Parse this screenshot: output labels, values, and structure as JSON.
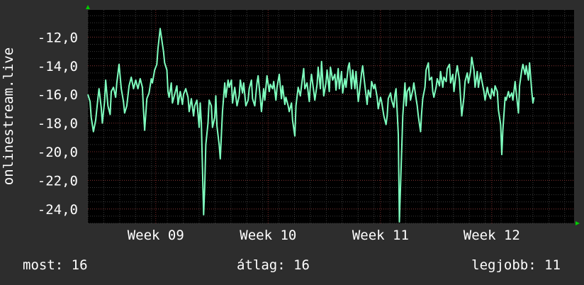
{
  "chart_data": {
    "type": "line",
    "ylabel": "onlinestream.live",
    "x_ticks": [
      "Week 09",
      "Week 10",
      "Week 11",
      "Week 12"
    ],
    "xlim": [
      0,
      4.37
    ],
    "x_tick_positions": [
      0.61,
      1.62,
      2.63,
      3.63
    ],
    "ylim": [
      -25.0,
      -10.1
    ],
    "y_ticks": [
      -12.0,
      -14.0,
      -16.0,
      -18.0,
      -20.0,
      -22.0,
      -24.0
    ],
    "y_tick_labels": [
      "-12,0",
      "-14,0",
      "-16,0",
      "-18,0",
      "-20,0",
      "-22,0",
      "-24,0"
    ],
    "grid": true,
    "series": [
      {
        "color": "#7fffbf",
        "points": [
          [
            0.0,
            -16.0
          ],
          [
            0.02,
            -16.5
          ],
          [
            0.03,
            -17.6
          ],
          [
            0.05,
            -18.6
          ],
          [
            0.07,
            -17.8
          ],
          [
            0.09,
            -16.3
          ],
          [
            0.1,
            -15.6
          ],
          [
            0.12,
            -16.9
          ],
          [
            0.13,
            -18.0
          ],
          [
            0.15,
            -16.5
          ],
          [
            0.16,
            -15.0
          ],
          [
            0.18,
            -16.8
          ],
          [
            0.2,
            -17.4
          ],
          [
            0.21,
            -15.8
          ],
          [
            0.23,
            -15.5
          ],
          [
            0.25,
            -16.2
          ],
          [
            0.26,
            -15.2
          ],
          [
            0.28,
            -13.9
          ],
          [
            0.3,
            -15.6
          ],
          [
            0.32,
            -16.5
          ],
          [
            0.33,
            -17.3
          ],
          [
            0.35,
            -16.8
          ],
          [
            0.37,
            -15.4
          ],
          [
            0.39,
            -14.8
          ],
          [
            0.41,
            -15.6
          ],
          [
            0.43,
            -15.0
          ],
          [
            0.45,
            -15.6
          ],
          [
            0.47,
            -14.9
          ],
          [
            0.49,
            -15.5
          ],
          [
            0.5,
            -17.1
          ],
          [
            0.51,
            -18.5
          ],
          [
            0.53,
            -16.3
          ],
          [
            0.55,
            -15.9
          ],
          [
            0.57,
            -14.9
          ],
          [
            0.58,
            -15.2
          ],
          [
            0.6,
            -14.3
          ],
          [
            0.62,
            -13.9
          ],
          [
            0.63,
            -12.8
          ],
          [
            0.65,
            -11.4
          ],
          [
            0.67,
            -12.5
          ],
          [
            0.68,
            -13.0
          ],
          [
            0.69,
            -13.8
          ],
          [
            0.71,
            -14.3
          ],
          [
            0.72,
            -15.8
          ],
          [
            0.73,
            -16.2
          ],
          [
            0.75,
            -15.2
          ],
          [
            0.76,
            -16.6
          ],
          [
            0.78,
            -16.0
          ],
          [
            0.8,
            -15.4
          ],
          [
            0.81,
            -16.7
          ],
          [
            0.83,
            -15.8
          ],
          [
            0.85,
            -16.7
          ],
          [
            0.86,
            -16.0
          ],
          [
            0.88,
            -15.6
          ],
          [
            0.9,
            -16.2
          ],
          [
            0.91,
            -17.2
          ],
          [
            0.93,
            -16.3
          ],
          [
            0.95,
            -17.5
          ],
          [
            0.96,
            -16.8
          ],
          [
            0.98,
            -16.4
          ],
          [
            1.0,
            -18.3
          ],
          [
            1.01,
            -16.6
          ],
          [
            1.02,
            -18.0
          ],
          [
            1.04,
            -24.4
          ],
          [
            1.05,
            -22.5
          ],
          [
            1.06,
            -19.5
          ],
          [
            1.08,
            -18.0
          ],
          [
            1.09,
            -16.4
          ],
          [
            1.11,
            -16.8
          ],
          [
            1.12,
            -18.3
          ],
          [
            1.14,
            -17.6
          ],
          [
            1.15,
            -16.1
          ],
          [
            1.16,
            -18.2
          ],
          [
            1.18,
            -19.5
          ],
          [
            1.19,
            -20.5
          ],
          [
            1.21,
            -17.2
          ],
          [
            1.23,
            -15.2
          ],
          [
            1.24,
            -16.2
          ],
          [
            1.26,
            -15.0
          ],
          [
            1.27,
            -15.5
          ],
          [
            1.29,
            -15.0
          ],
          [
            1.3,
            -16.6
          ],
          [
            1.32,
            -15.5
          ],
          [
            1.34,
            -16.8
          ],
          [
            1.36,
            -16.1
          ],
          [
            1.37,
            -15.0
          ],
          [
            1.39,
            -15.9
          ],
          [
            1.4,
            -15.2
          ],
          [
            1.42,
            -16.8
          ],
          [
            1.44,
            -16.4
          ],
          [
            1.45,
            -15.6
          ],
          [
            1.47,
            -15.0
          ],
          [
            1.48,
            -16.3
          ],
          [
            1.5,
            -16.8
          ],
          [
            1.52,
            -15.2
          ],
          [
            1.53,
            -14.7
          ],
          [
            1.55,
            -16.3
          ],
          [
            1.56,
            -17.2
          ],
          [
            1.58,
            -15.6
          ],
          [
            1.59,
            -16.4
          ],
          [
            1.61,
            -14.7
          ],
          [
            1.63,
            -15.8
          ],
          [
            1.64,
            -15.3
          ],
          [
            1.66,
            -15.6
          ],
          [
            1.67,
            -15.1
          ],
          [
            1.69,
            -16.4
          ],
          [
            1.7,
            -15.5
          ],
          [
            1.72,
            -14.6
          ],
          [
            1.74,
            -16.3
          ],
          [
            1.75,
            -15.4
          ],
          [
            1.77,
            -16.7
          ],
          [
            1.78,
            -16.2
          ],
          [
            1.8,
            -16.8
          ],
          [
            1.81,
            -17.2
          ],
          [
            1.83,
            -16.6
          ],
          [
            1.84,
            -17.8
          ],
          [
            1.86,
            -18.9
          ],
          [
            1.87,
            -16.8
          ],
          [
            1.89,
            -15.5
          ],
          [
            1.91,
            -16.1
          ],
          [
            1.92,
            -15.4
          ],
          [
            1.94,
            -14.2
          ],
          [
            1.95,
            -15.6
          ],
          [
            1.97,
            -15.2
          ],
          [
            1.99,
            -16.5
          ],
          [
            2.0,
            -15.3
          ],
          [
            2.01,
            -14.6
          ],
          [
            2.03,
            -15.8
          ],
          [
            2.04,
            -16.4
          ],
          [
            2.06,
            -15.3
          ],
          [
            2.07,
            -14.1
          ],
          [
            2.09,
            -15.6
          ],
          [
            2.1,
            -13.7
          ],
          [
            2.12,
            -16.1
          ],
          [
            2.14,
            -15.2
          ],
          [
            2.15,
            -14.3
          ],
          [
            2.17,
            -15.8
          ],
          [
            2.18,
            -14.1
          ],
          [
            2.2,
            -15.0
          ],
          [
            2.22,
            -14.6
          ],
          [
            2.23,
            -15.7
          ],
          [
            2.25,
            -14.2
          ],
          [
            2.26,
            -15.6
          ],
          [
            2.28,
            -14.4
          ],
          [
            2.29,
            -15.9
          ],
          [
            2.31,
            -14.9
          ],
          [
            2.32,
            -15.5
          ],
          [
            2.34,
            -14.1
          ],
          [
            2.35,
            -13.8
          ],
          [
            2.37,
            -15.6
          ],
          [
            2.38,
            -14.3
          ],
          [
            2.4,
            -15.6
          ],
          [
            2.41,
            -14.4
          ],
          [
            2.43,
            -16.5
          ],
          [
            2.44,
            -15.9
          ],
          [
            2.46,
            -14.5
          ],
          [
            2.47,
            -14.0
          ],
          [
            2.49,
            -15.4
          ],
          [
            2.51,
            -16.7
          ],
          [
            2.52,
            -15.7
          ],
          [
            2.54,
            -16.2
          ],
          [
            2.55,
            -15.1
          ],
          [
            2.57,
            -15.6
          ],
          [
            2.58,
            -15.3
          ],
          [
            2.6,
            -16.2
          ],
          [
            2.61,
            -17.0
          ],
          [
            2.63,
            -16.2
          ],
          [
            2.64,
            -16.5
          ],
          [
            2.66,
            -17.5
          ],
          [
            2.68,
            -18.1
          ],
          [
            2.69,
            -17.5
          ],
          [
            2.7,
            -16.3
          ],
          [
            2.72,
            -15.9
          ],
          [
            2.73,
            -16.4
          ],
          [
            2.75,
            -16.9
          ],
          [
            2.76,
            -16.0
          ],
          [
            2.77,
            -15.6
          ],
          [
            2.79,
            -18.8
          ],
          [
            2.8,
            -24.9
          ],
          [
            2.82,
            -20.0
          ],
          [
            2.83,
            -17.5
          ],
          [
            2.85,
            -15.2
          ],
          [
            2.86,
            -16.8
          ],
          [
            2.87,
            -15.8
          ],
          [
            2.89,
            -15.5
          ],
          [
            2.9,
            -16.4
          ],
          [
            2.92,
            -15.7
          ],
          [
            2.93,
            -15.2
          ],
          [
            2.95,
            -16.3
          ],
          [
            2.96,
            -16.8
          ],
          [
            2.97,
            -17.5
          ],
          [
            2.99,
            -18.6
          ],
          [
            3.0,
            -17.3
          ],
          [
            3.01,
            -16.3
          ],
          [
            3.03,
            -15.5
          ],
          [
            3.04,
            -14.3
          ],
          [
            3.06,
            -13.8
          ],
          [
            3.07,
            -15.0
          ],
          [
            3.09,
            -14.8
          ],
          [
            3.1,
            -15.8
          ],
          [
            3.11,
            -16.2
          ],
          [
            3.13,
            -15.5
          ],
          [
            3.14,
            -14.9
          ],
          [
            3.16,
            -15.4
          ],
          [
            3.17,
            -14.4
          ],
          [
            3.19,
            -15.5
          ],
          [
            3.2,
            -14.8
          ],
          [
            3.22,
            -15.1
          ],
          [
            3.23,
            -14.2
          ],
          [
            3.25,
            -13.9
          ],
          [
            3.26,
            -15.2
          ],
          [
            3.28,
            -14.6
          ],
          [
            3.29,
            -15.8
          ],
          [
            3.31,
            -14.5
          ],
          [
            3.32,
            -14.0
          ],
          [
            3.34,
            -15.0
          ],
          [
            3.35,
            -16.3
          ],
          [
            3.36,
            -17.5
          ],
          [
            3.38,
            -16.2
          ],
          [
            3.39,
            -15.1
          ],
          [
            3.41,
            -14.5
          ],
          [
            3.42,
            -15.2
          ],
          [
            3.44,
            -14.4
          ],
          [
            3.45,
            -13.4
          ],
          [
            3.47,
            -14.3
          ],
          [
            3.48,
            -15.5
          ],
          [
            3.5,
            -14.4
          ],
          [
            3.51,
            -15.5
          ],
          [
            3.53,
            -14.5
          ],
          [
            3.54,
            -15.0
          ],
          [
            3.56,
            -15.8
          ],
          [
            3.57,
            -16.4
          ],
          [
            3.59,
            -15.5
          ],
          [
            3.6,
            -15.9
          ],
          [
            3.62,
            -16.3
          ],
          [
            3.63,
            -15.6
          ],
          [
            3.65,
            -16.1
          ],
          [
            3.66,
            -15.4
          ],
          [
            3.68,
            -15.8
          ],
          [
            3.69,
            -17.1
          ],
          [
            3.71,
            -18.1
          ],
          [
            3.72,
            -20.2
          ],
          [
            3.73,
            -18.5
          ],
          [
            3.75,
            -16.2
          ],
          [
            3.76,
            -16.4
          ],
          [
            3.78,
            -15.8
          ],
          [
            3.79,
            -16.2
          ],
          [
            3.81,
            -15.9
          ],
          [
            3.82,
            -16.4
          ],
          [
            3.84,
            -15.1
          ],
          [
            3.85,
            -15.9
          ],
          [
            3.87,
            -17.3
          ],
          [
            3.88,
            -15.4
          ],
          [
            3.9,
            -14.3
          ],
          [
            3.91,
            -13.9
          ],
          [
            3.93,
            -14.6
          ],
          [
            3.94,
            -14.0
          ],
          [
            3.96,
            -15.0
          ],
          [
            3.97,
            -13.8
          ],
          [
            3.99,
            -15.8
          ],
          [
            4.0,
            -16.6
          ],
          [
            4.01,
            -16.2
          ]
        ]
      }
    ]
  },
  "footer": {
    "current": "most: 16",
    "average": "átlag: 16",
    "best": "legjobb: 11"
  },
  "colors": {
    "background": "#2d2d2d",
    "plot_background": "#000000",
    "line": "#7fffbf",
    "grid_major": "#7a2a2a",
    "grid_minor": "#3a3a3a",
    "axis_arrow": "#00cc00"
  }
}
